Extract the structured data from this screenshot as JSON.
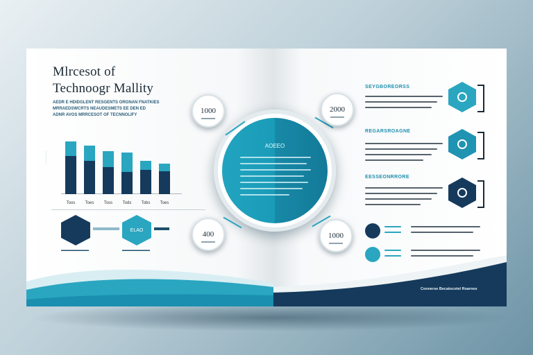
{
  "brochure": {
    "title_line1": "Mlrcesot of",
    "title_line2": "Technoogr Mallity",
    "subtitle_line1": "AEDR E HDIDGLENT RESGENTS ORGNAN FNATKIES",
    "subtitle_line2": "MRRAEDSWCRTS NEAUDESMETS EE DEN ED",
    "subtitle_line3": "ADNR AVOS MRRCESOT OF TECNNOLIFY",
    "left_chart": {
      "type": "bar",
      "categories": [
        "Toos",
        "Toes",
        "Toss",
        "Tods",
        "Tobs",
        "Toes"
      ],
      "bars_top_fraction": [
        0.27,
        0.32,
        0.37,
        0.46,
        0.27,
        0.25
      ],
      "values": [
        76,
        70,
        62,
        60,
        48,
        44
      ]
    },
    "left_hex_1_label": "",
    "left_hex_2_label": "ELAO",
    "center": {
      "title": "AOEEO"
    },
    "badges": {
      "top_left": "1000",
      "top_right": "2000",
      "bottom_left": "400",
      "bottom_right": "1000"
    },
    "right": {
      "section1_head": "SEYGBOREORSS",
      "section2_head": "REGARSROAGNE",
      "section3_head": "EESSEONRRORE"
    },
    "footer": "Connerse Becatocotel Roarnes",
    "colors": {
      "teal": "#2aa6c0",
      "navy": "#153a5c"
    }
  }
}
